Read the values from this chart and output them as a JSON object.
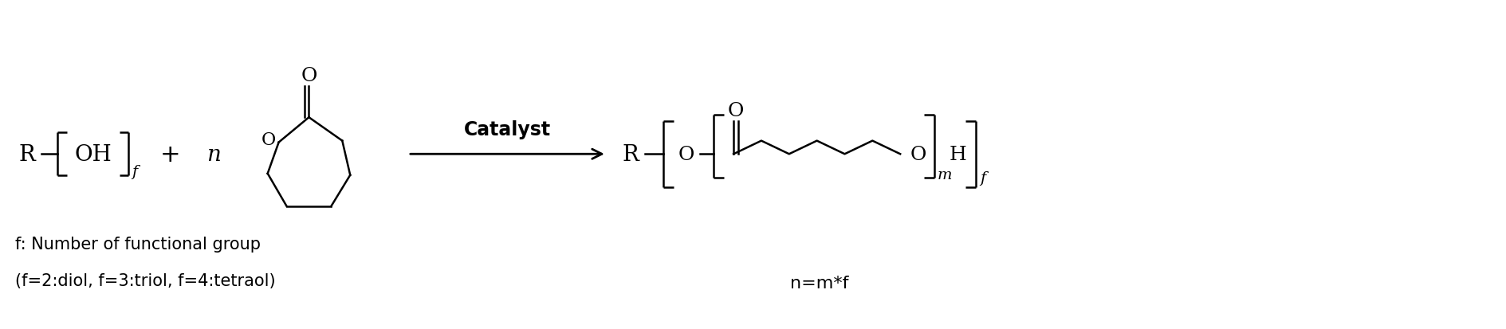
{
  "bg_color": "#ffffff",
  "text_color": "#000000",
  "line_color": "#000000",
  "font_size_main": 20,
  "font_size_sub": 16,
  "font_size_small": 14,
  "font_size_label": 15,
  "catalyst_text": "Catalyst",
  "footnote1": "f: Number of functional group",
  "footnote2": "(f=2:diol, f=3:triol, f=4:tetraol)",
  "nmf_text": "n=m*f",
  "figsize": [
    18.9,
    4.14
  ],
  "dpi": 100
}
